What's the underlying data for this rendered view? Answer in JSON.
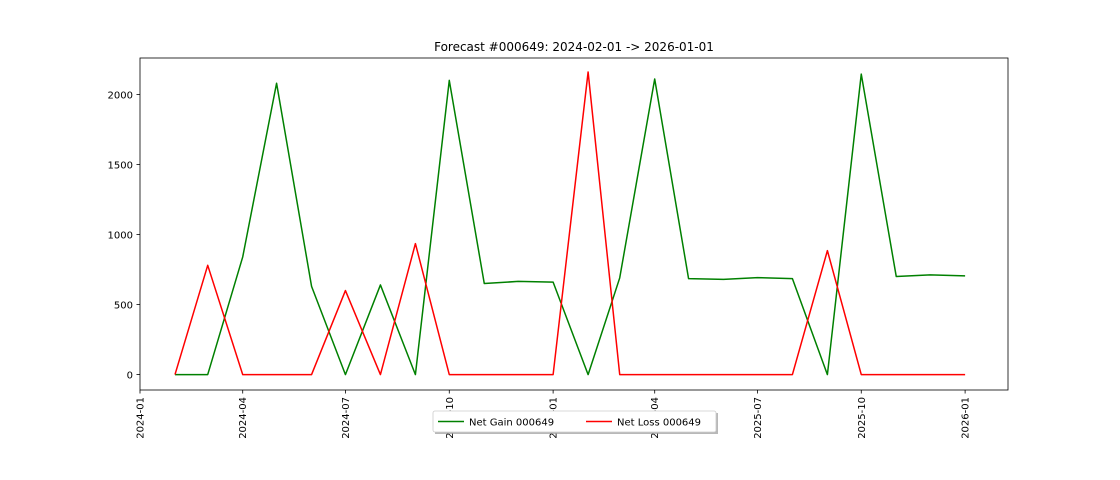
{
  "chart_data": {
    "type": "line",
    "title": "Forecast #000649: 2024-02-01 -> 2026-01-01",
    "xlabel": "",
    "ylabel": "",
    "x": [
      "2024-02-01",
      "2024-03-01",
      "2024-04-01",
      "2024-05-01",
      "2024-06-01",
      "2024-07-01",
      "2024-08-01",
      "2024-09-01",
      "2024-10-01",
      "2024-11-01",
      "2024-12-01",
      "2025-01-01",
      "2025-02-01",
      "2025-03-01",
      "2025-04-01",
      "2025-05-01",
      "2025-06-01",
      "2025-07-01",
      "2025-08-01",
      "2025-09-01",
      "2025-10-01",
      "2025-11-01",
      "2025-12-01",
      "2026-01-01"
    ],
    "series": [
      {
        "name": "Net Gain 000649",
        "color": "#008000",
        "values": [
          0,
          0,
          840,
          2080,
          630,
          0,
          640,
          0,
          2100,
          650,
          665,
          660,
          0,
          690,
          2110,
          685,
          680,
          692,
          685,
          0,
          2145,
          700,
          712,
          705
        ]
      },
      {
        "name": "Net Loss 000649",
        "color": "#ff0000",
        "values": [
          0,
          780,
          0,
          0,
          0,
          600,
          0,
          935,
          0,
          0,
          0,
          0,
          2160,
          0,
          0,
          0,
          0,
          0,
          0,
          885,
          0,
          0,
          0,
          0
        ]
      }
    ],
    "x_ticks": [
      "2024-01",
      "2024-04",
      "2024-07",
      "2024-10",
      "2025-01",
      "2025-04",
      "2025-07",
      "2025-10",
      "2026-01"
    ],
    "y_ticks": [
      0,
      500,
      1000,
      1500,
      2000
    ],
    "xlim": [
      "2024-01-01",
      "2026-02-08"
    ],
    "ylim": [
      -110,
      2260
    ],
    "grid": false,
    "legend": "bottom-center"
  }
}
